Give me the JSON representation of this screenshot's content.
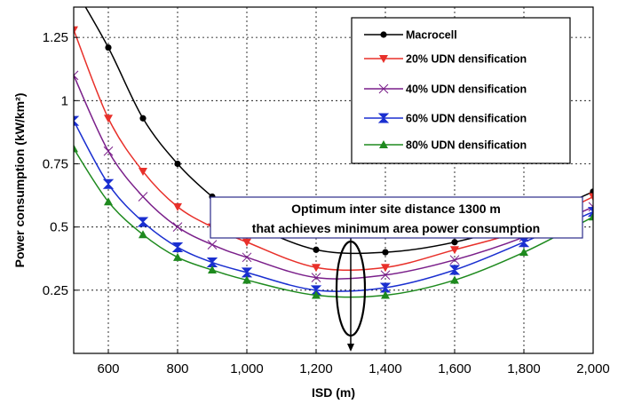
{
  "chart_data": {
    "type": "line",
    "xlabel": "ISD (m)",
    "ylabel": "Power consumption (kW/km²)",
    "xlim": [
      500,
      2000
    ],
    "ylim": [
      0,
      1.37
    ],
    "x_ticks": [
      600,
      800,
      1000,
      1200,
      1400,
      1600,
      1800,
      2000
    ],
    "x_tick_labels": [
      "600",
      "800",
      "1,000",
      "1,200",
      "1,400",
      "1,600",
      "1,800",
      "2,000"
    ],
    "y_ticks": [
      0.25,
      0.5,
      0.75,
      1,
      1.25
    ],
    "y_tick_labels": [
      "0.25",
      "0.5",
      "0.75",
      "1",
      "1.25"
    ],
    "grid": true,
    "legend_position": "top-right",
    "series": [
      {
        "name": "Macrocell",
        "color": "#000000",
        "marker": "circle",
        "x": [
          500,
          600,
          700,
          800,
          900,
          1000,
          1200,
          1400,
          1600,
          1800,
          2000
        ],
        "y": [
          1.45,
          1.21,
          0.93,
          0.75,
          0.62,
          0.52,
          0.41,
          0.4,
          0.44,
          0.52,
          0.64
        ]
      },
      {
        "name": "20% UDN densification",
        "color": "#e8302a",
        "marker": "triangle-down",
        "x": [
          500,
          600,
          700,
          800,
          900,
          1000,
          1200,
          1400,
          1600,
          1800,
          2000
        ],
        "y": [
          1.28,
          0.93,
          0.72,
          0.58,
          0.5,
          0.44,
          0.34,
          0.34,
          0.41,
          0.49,
          0.62
        ]
      },
      {
        "name": "40% UDN densification",
        "color": "#7a1f8a",
        "marker": "bowtie",
        "x": [
          500,
          600,
          700,
          800,
          900,
          1000,
          1200,
          1400,
          1600,
          1800,
          2000
        ],
        "y": [
          1.1,
          0.8,
          0.62,
          0.5,
          0.43,
          0.38,
          0.3,
          0.31,
          0.37,
          0.46,
          0.58
        ]
      },
      {
        "name": "60% UDN densification",
        "color": "#1a2fd0",
        "marker": "hourglass",
        "x": [
          500,
          600,
          700,
          800,
          900,
          1000,
          1200,
          1400,
          1600,
          1800,
          2000
        ],
        "y": [
          0.92,
          0.67,
          0.52,
          0.42,
          0.36,
          0.32,
          0.25,
          0.26,
          0.33,
          0.44,
          0.56
        ]
      },
      {
        "name": "80% UDN densification",
        "color": "#1e8a1e",
        "marker": "triangle-up",
        "x": [
          500,
          600,
          700,
          800,
          900,
          1000,
          1200,
          1400,
          1600,
          1800,
          2000
        ],
        "y": [
          0.81,
          0.6,
          0.47,
          0.38,
          0.33,
          0.29,
          0.23,
          0.23,
          0.29,
          0.4,
          0.54
        ]
      }
    ],
    "annotation": {
      "lines": [
        "Optimum inter site distance 1300 m",
        "that achieves minimum area power consumption"
      ],
      "x": 1300
    }
  }
}
